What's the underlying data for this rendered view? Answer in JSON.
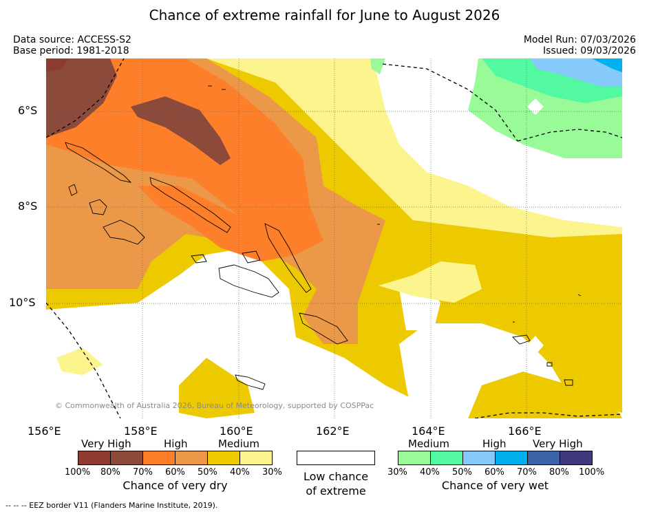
{
  "title": "Chance of extreme rainfall for June to August 2026",
  "meta": {
    "data_source": "Data source: ACCESS-S2",
    "base_period": "Base period: 1981-2018",
    "model_run": "Model Run: 07/03/2026",
    "issued": "Issued: 09/03/2026"
  },
  "axes": {
    "lat_labels": [
      "6°S",
      "8°S",
      "10°S"
    ],
    "lon_labels": [
      "156°E",
      "158°E",
      "160°E",
      "162°E",
      "164°E",
      "166°E"
    ]
  },
  "copyright": "© Commonwealth of Australia 2026, Bureau of Meteorology, supported by COSPPac",
  "legend": {
    "dry": {
      "group_labels": [
        "Very High",
        "High",
        "Medium"
      ],
      "ticks": [
        "100%",
        "80%",
        "70%",
        "60%",
        "50%",
        "40%",
        "30%"
      ],
      "colors": [
        "#8e3b32",
        "#8b4a3a",
        "#fe7f29",
        "#eb9848",
        "#edc900",
        "#fcf58e"
      ],
      "caption": "Chance of very dry"
    },
    "neutral": {
      "caption_line1": "Low chance",
      "caption_line2": "of extreme",
      "color": "#ffffff"
    },
    "wet": {
      "group_labels": [
        "Medium",
        "High",
        "Very High"
      ],
      "ticks": [
        "30%",
        "40%",
        "50%",
        "60%",
        "70%",
        "80%",
        "100%"
      ],
      "colors": [
        "#98fb98",
        "#53f9a0",
        "#86cafb",
        "#01b0ef",
        "#3a64a7",
        "#3f3a7c"
      ],
      "caption": "Chance of very wet"
    }
  },
  "eez_note": "-- -- -- EEZ border V11 (Flanders Marine Institute, 2019)."
}
